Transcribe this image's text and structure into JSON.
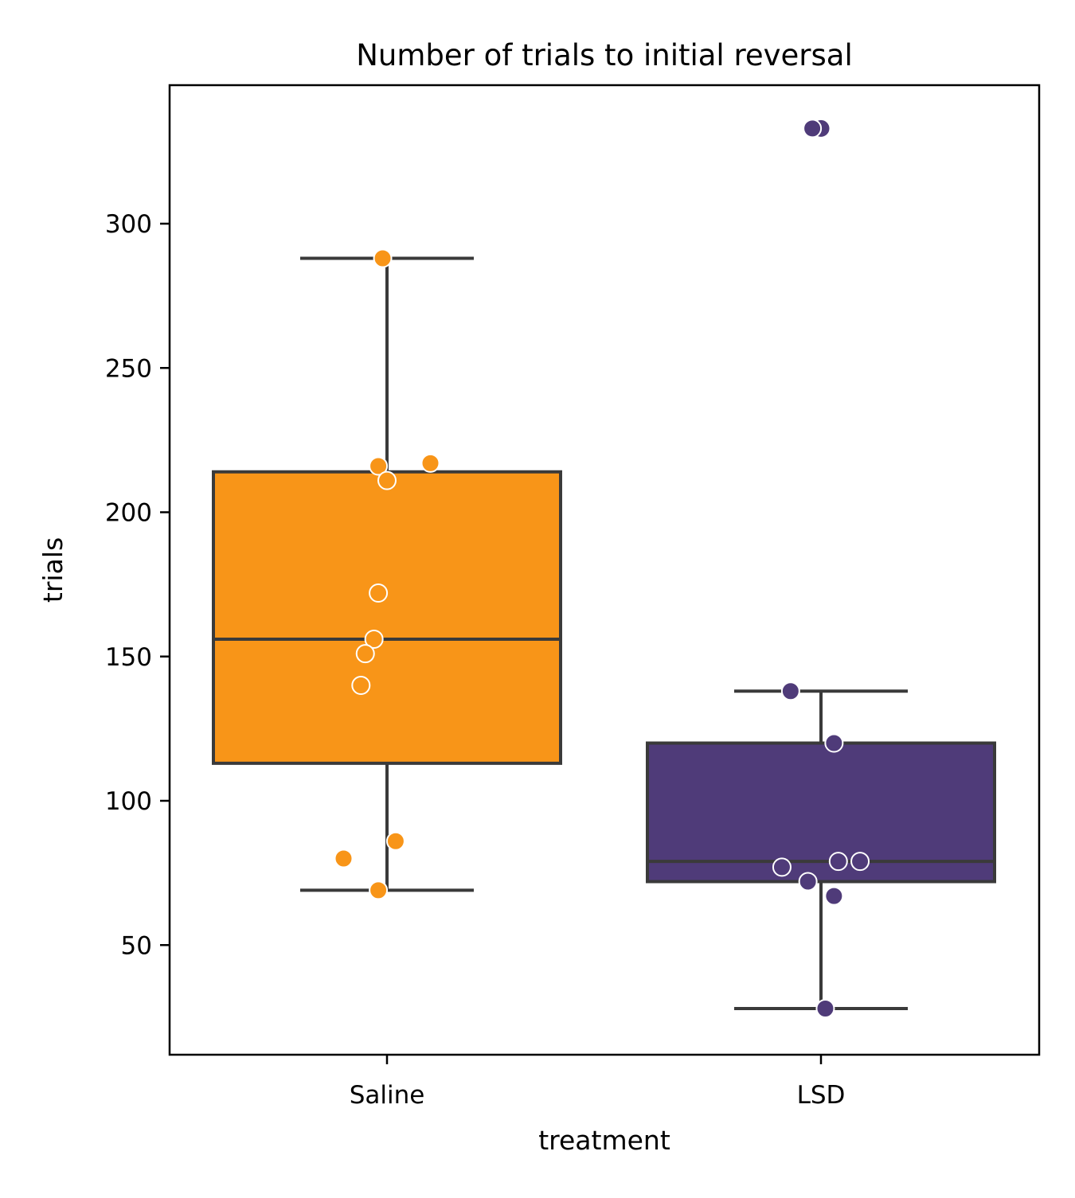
{
  "chart_data": {
    "type": "box",
    "title": "Number of trials to initial reversal",
    "xlabel": "treatment",
    "ylabel": "trials",
    "ylim": [
      12,
      348
    ],
    "yticks": [
      50,
      100,
      150,
      200,
      250,
      300
    ],
    "grid": false,
    "legend": "none",
    "categories": [
      "Saline",
      "LSD"
    ],
    "boxes": [
      {
        "category": "Saline",
        "color": "#f89518",
        "whisker_low": 69,
        "q1": 113,
        "median": 156,
        "q3": 214,
        "whisker_high": 288,
        "outliers": []
      },
      {
        "category": "LSD",
        "color": "#4f3b79",
        "whisker_low": 28,
        "q1": 72,
        "median": 79,
        "q3": 120,
        "whisker_high": 138,
        "outliers": [
          333
        ]
      }
    ],
    "points": [
      {
        "category": "Saline",
        "color": "#f89518",
        "values": [
          288,
          217,
          216,
          211,
          172,
          156,
          151,
          140,
          86,
          80,
          69
        ],
        "jitter": [
          -0.01,
          0.1,
          -0.02,
          0.0,
          -0.02,
          -0.03,
          -0.05,
          -0.06,
          0.02,
          -0.1,
          -0.02
        ]
      },
      {
        "category": "LSD",
        "color": "#4f3b79",
        "values": [
          333,
          138,
          120,
          79,
          79,
          77,
          72,
          67,
          28
        ],
        "jitter": [
          -0.02,
          -0.07,
          0.03,
          0.04,
          0.09,
          -0.09,
          -0.03,
          0.03,
          0.01
        ]
      }
    ]
  }
}
